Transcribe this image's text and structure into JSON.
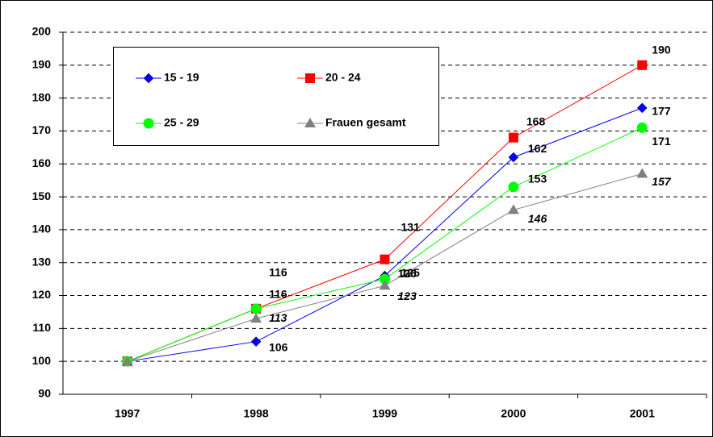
{
  "chart_data": {
    "type": "line",
    "categories": [
      "1997",
      "1998",
      "1999",
      "2000",
      "2001"
    ],
    "series": [
      {
        "name": "15 - 19",
        "color": "#0000ff",
        "marker": "diamond",
        "values": [
          100,
          106,
          126,
          162,
          177
        ]
      },
      {
        "name": "20 - 24",
        "color": "#ff0000",
        "marker": "square",
        "values": [
          100,
          116,
          131,
          168,
          190
        ]
      },
      {
        "name": "25 - 29",
        "color": "#00ff00",
        "marker": "circle",
        "values": [
          100,
          116,
          125,
          153,
          171
        ]
      },
      {
        "name": "Frauen gesamt",
        "color": "#808080",
        "marker": "triangle",
        "values": [
          100,
          113,
          123,
          146,
          157
        ]
      }
    ],
    "ylim": [
      90,
      200
    ],
    "yticks": [
      90,
      100,
      110,
      120,
      130,
      140,
      150,
      160,
      170,
      180,
      190,
      200
    ],
    "grid": true
  }
}
